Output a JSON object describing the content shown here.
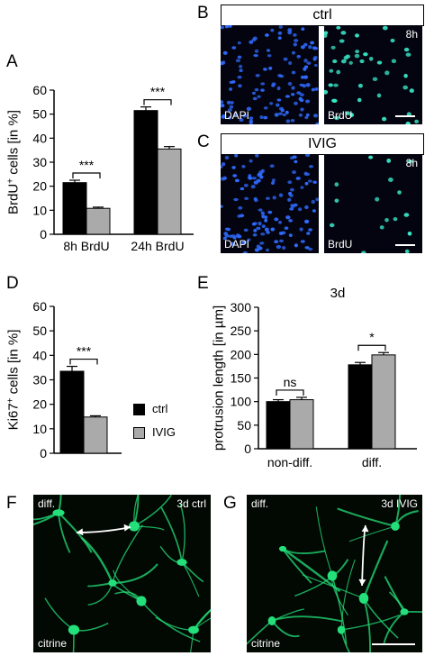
{
  "figure": {
    "letters": {
      "A": "A",
      "B": "B",
      "C": "C",
      "D": "D",
      "E": "E",
      "F": "F",
      "G": "G"
    },
    "colors": {
      "ctrl": "#000000",
      "ivig": "#aaaaaa",
      "dapi": "#2f6bff",
      "brdu": "#38e8c8",
      "citrine": "#23e07a"
    }
  },
  "panel_b": {
    "header": "ctrl",
    "left_label": "DAPI",
    "right_label": "BrdU",
    "time": "8h"
  },
  "panel_c": {
    "header": "IVIG",
    "left_label": "DAPI",
    "right_label": "BrdU",
    "time": "8h"
  },
  "panel_f": {
    "tl": "diff.",
    "tr": "3d ctrl",
    "bl": "citrine"
  },
  "panel_g": {
    "tl": "diff.",
    "tr": "3d IVIG",
    "bl": "citrine"
  },
  "legend": {
    "ctrl": "ctrl",
    "ivig": "IVIG"
  },
  "chart_data": [
    {
      "id": "A",
      "type": "bar",
      "ylabel_main": "BrdU",
      "ylabel_sup": "+",
      "ylabel_rest": " cells [in %]",
      "ylim": [
        0,
        60
      ],
      "yticks": [
        "0",
        "10",
        "20",
        "30",
        "40",
        "50",
        "60"
      ],
      "categories": [
        "8h BrdU",
        "24h BrdU"
      ],
      "series": [
        {
          "name": "ctrl",
          "values": [
            21.5,
            51.5
          ],
          "errors": [
            1.0,
            1.5
          ]
        },
        {
          "name": "IVIG",
          "values": [
            10.8,
            35.5
          ],
          "errors": [
            0.5,
            1.0
          ]
        }
      ],
      "annotations": [
        "***",
        "***"
      ]
    },
    {
      "id": "D",
      "type": "bar",
      "ylabel_main": "Ki67",
      "ylabel_sup": "+",
      "ylabel_rest": " cells [in %]",
      "ylim": [
        0,
        60
      ],
      "yticks": [
        "0",
        "10",
        "20",
        "30",
        "40",
        "50",
        "60"
      ],
      "categories": [
        ""
      ],
      "series": [
        {
          "name": "ctrl",
          "values": [
            33.5
          ],
          "errors": [
            2.0
          ]
        },
        {
          "name": "IVIG",
          "values": [
            14.8
          ],
          "errors": [
            0.5
          ]
        }
      ],
      "annotations": [
        "***"
      ]
    },
    {
      "id": "E",
      "type": "bar",
      "title": "3d",
      "ylabel": "protrusion length [in µm]",
      "ylim": [
        0,
        300
      ],
      "yticks": [
        "0",
        "50",
        "100",
        "150",
        "200",
        "250",
        "300"
      ],
      "categories": [
        "non-diff.",
        "diff."
      ],
      "series": [
        {
          "name": "ctrl",
          "values": [
            100,
            178
          ],
          "errors": [
            4,
            5
          ]
        },
        {
          "name": "IVIG",
          "values": [
            104,
            199
          ],
          "errors": [
            5,
            5
          ]
        }
      ],
      "annotations": [
        "ns",
        "*"
      ]
    }
  ]
}
